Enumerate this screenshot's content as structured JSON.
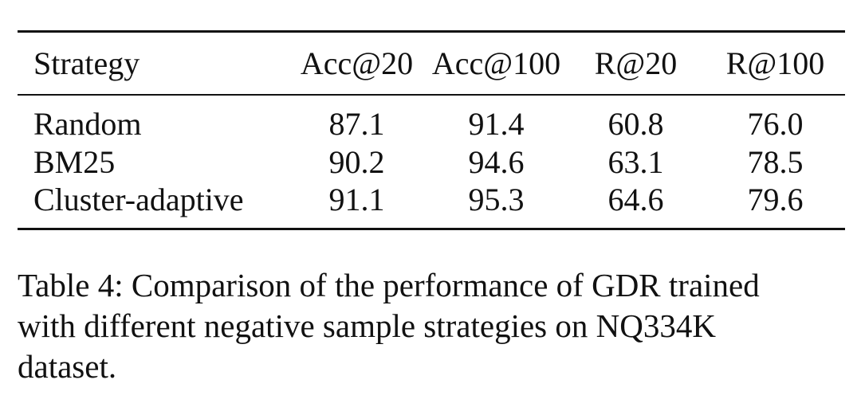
{
  "table": {
    "columns": [
      "Strategy",
      "Acc@20",
      "Acc@100",
      "R@20",
      "R@100"
    ],
    "rows": [
      {
        "strategy": "Random",
        "acc20": "87.1",
        "acc100": "91.4",
        "r20": "60.8",
        "r100": "76.0",
        "bold": false
      },
      {
        "strategy": "BM25",
        "acc20": "90.2",
        "acc100": "94.6",
        "r20": "63.1",
        "r100": "78.5",
        "bold": false
      },
      {
        "strategy": "Cluster-adaptive",
        "acc20": "91.1",
        "acc100": "95.3",
        "r20": "64.6",
        "r100": "79.6",
        "bold": true
      }
    ]
  },
  "caption": {
    "line1": "Table 4: Comparison of the performance of GDR trained",
    "line2": "with different negative sample strategies on NQ334K",
    "line3": "dataset."
  }
}
